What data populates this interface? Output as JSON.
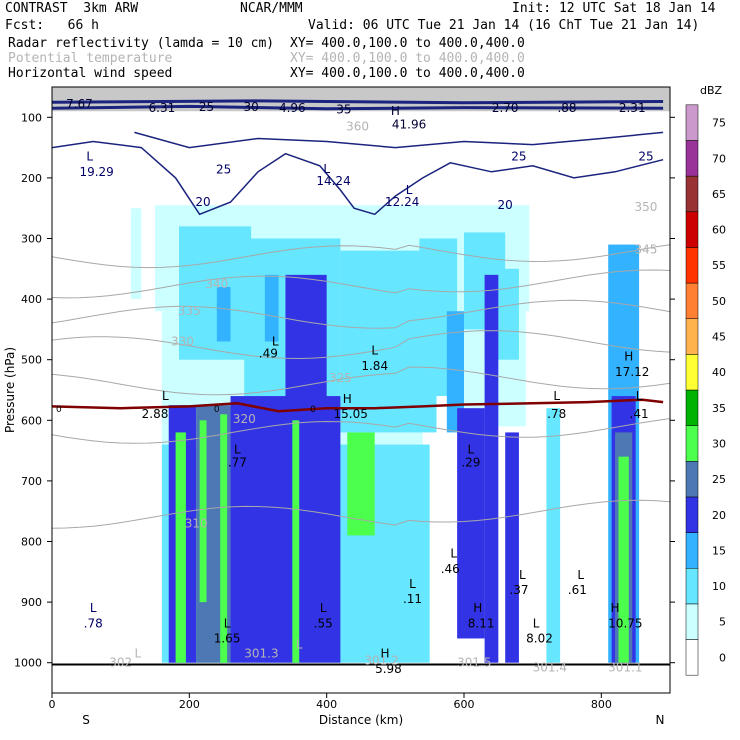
{
  "header": {
    "model": "CONTRAST  3km ARW",
    "org": "NCAR/MMM",
    "init": "Init: 12 UTC Sat 18 Jan 14",
    "fcst": "Fcst:   66 h",
    "valid": "Valid: 06 UTC Tue 21 Jan 14 (16 ChT Tue 21 Jan 14)",
    "fields": [
      {
        "name": "Radar reflectivity (lamda = 10 cm)",
        "xy": "XY= 400.0,100.0 to 400.0,400.0",
        "color": "#000000"
      },
      {
        "name": "Potential temperature",
        "xy": "XY= 400.0,100.0 to 400.0,400.0",
        "color": "#b4b4b4"
      },
      {
        "name": "Horizontal wind speed",
        "xy": "XY= 400.0,100.0 to 400.0,400.0",
        "color": "#000000"
      }
    ]
  },
  "chart_data": {
    "type": "cross-section",
    "xlabel": "Distance (km)",
    "ylabel": "Pressure (hPa)",
    "xlim": [
      0,
      900
    ],
    "ylim": [
      1050,
      50
    ],
    "x_ticks": [
      0,
      200,
      400,
      600,
      800
    ],
    "y_ticks": [
      100,
      200,
      300,
      400,
      500,
      600,
      700,
      800,
      900,
      1000
    ],
    "x_end_labels": {
      "left": "S",
      "right": "N"
    },
    "colorbar": {
      "unit": "dBZ",
      "levels": [
        0,
        5,
        10,
        15,
        20,
        25,
        30,
        35,
        40,
        45,
        50,
        55,
        60,
        65,
        70,
        75
      ],
      "colors": [
        "#ffffff",
        "#ccffff",
        "#66e6ff",
        "#33b3ff",
        "#3333e6",
        "#4d78b3",
        "#4dff4d",
        "#00b300",
        "#ffff33",
        "#ffb34d",
        "#ff7f33",
        "#ff3300",
        "#cc0000",
        "#993333",
        "#993399",
        "#cc99cc"
      ]
    },
    "reflectivity_cells": [
      {
        "x": [
          115,
          130
        ],
        "p": [
          250,
          400
        ],
        "dbz": 5
      },
      {
        "x": [
          150,
          695
        ],
        "p": [
          245,
          420
        ],
        "dbz": 5
      },
      {
        "x": [
          590,
          690
        ],
        "p": [
          260,
          610
        ],
        "dbz": 5
      },
      {
        "x": [
          160,
          540
        ],
        "p": [
          420,
          640
        ],
        "dbz": 5
      },
      {
        "x": [
          160,
          550
        ],
        "p": [
          640,
          1000
        ],
        "dbz": 10
      },
      {
        "x": [
          185,
          290
        ],
        "p": [
          280,
          500
        ],
        "dbz": 10
      },
      {
        "x": [
          280,
          420
        ],
        "p": [
          300,
          560
        ],
        "dbz": 10
      },
      {
        "x": [
          420,
          560
        ],
        "p": [
          320,
          620
        ],
        "dbz": 10
      },
      {
        "x": [
          535,
          590
        ],
        "p": [
          300,
          560
        ],
        "dbz": 10
      },
      {
        "x": [
          600,
          660
        ],
        "p": [
          290,
          450
        ],
        "dbz": 10
      },
      {
        "x": [
          630,
          680
        ],
        "p": [
          350,
          500
        ],
        "dbz": 10
      },
      {
        "x": [
          240,
          260
        ],
        "p": [
          380,
          470
        ],
        "dbz": 15
      },
      {
        "x": [
          310,
          330
        ],
        "p": [
          360,
          470
        ],
        "dbz": 15
      },
      {
        "x": [
          340,
          400
        ],
        "p": [
          360,
          580
        ],
        "dbz": 20
      },
      {
        "x": [
          260,
          420
        ],
        "p": [
          560,
          1000
        ],
        "dbz": 20
      },
      {
        "x": [
          170,
          210
        ],
        "p": [
          575,
          1000
        ],
        "dbz": 20
      },
      {
        "x": [
          210,
          260
        ],
        "p": [
          575,
          1000
        ],
        "dbz": 25
      },
      {
        "x": [
          575,
          600
        ],
        "p": [
          420,
          620
        ],
        "dbz": 15
      },
      {
        "x": [
          630,
          650
        ],
        "p": [
          360,
          1000
        ],
        "dbz": 20
      },
      {
        "x": [
          810,
          855
        ],
        "p": [
          310,
          1000
        ],
        "dbz": 15
      },
      {
        "x": [
          815,
          850
        ],
        "p": [
          560,
          1000
        ],
        "dbz": 20
      },
      {
        "x": [
          820,
          845
        ],
        "p": [
          620,
          1000
        ],
        "dbz": 25
      },
      {
        "x": [
          825,
          840
        ],
        "p": [
          660,
          1000
        ],
        "dbz": 30
      },
      {
        "x": [
          180,
          195
        ],
        "p": [
          620,
          1000
        ],
        "dbz": 30
      },
      {
        "x": [
          215,
          225
        ],
        "p": [
          600,
          900
        ],
        "dbz": 30
      },
      {
        "x": [
          245,
          255
        ],
        "p": [
          590,
          1000
        ],
        "dbz": 30
      },
      {
        "x": [
          350,
          360
        ],
        "p": [
          600,
          1000
        ],
        "dbz": 30
      },
      {
        "x": [
          430,
          470
        ],
        "p": [
          620,
          790
        ],
        "dbz": 30
      },
      {
        "x": [
          590,
          630
        ],
        "p": [
          580,
          960
        ],
        "dbz": 20
      },
      {
        "x": [
          660,
          680
        ],
        "p": [
          620,
          1000
        ],
        "dbz": 20
      },
      {
        "x": [
          720,
          740
        ],
        "p": [
          580,
          1000
        ],
        "dbz": 10
      }
    ],
    "freezing_level_label": "0",
    "freezing_level": [
      {
        "x": 0,
        "p": 577
      },
      {
        "x": 100,
        "p": 580
      },
      {
        "x": 200,
        "p": 577
      },
      {
        "x": 270,
        "p": 572
      },
      {
        "x": 330,
        "p": 585
      },
      {
        "x": 400,
        "p": 580
      },
      {
        "x": 470,
        "p": 580
      },
      {
        "x": 540,
        "p": 577
      },
      {
        "x": 600,
        "p": 574
      },
      {
        "x": 700,
        "p": 572
      },
      {
        "x": 780,
        "p": 570
      },
      {
        "x": 860,
        "p": 566
      },
      {
        "x": 890,
        "p": 570
      }
    ],
    "wind_contours": [
      {
        "label": "20",
        "points": [
          {
            "x": 0,
            "p": 150
          },
          {
            "x": 60,
            "p": 140
          },
          {
            "x": 130,
            "p": 150
          },
          {
            "x": 180,
            "p": 200
          },
          {
            "x": 215,
            "p": 260
          },
          {
            "x": 260,
            "p": 240
          },
          {
            "x": 300,
            "p": 190
          },
          {
            "x": 340,
            "p": 160
          },
          {
            "x": 390,
            "p": 180
          },
          {
            "x": 420,
            "p": 220
          },
          {
            "x": 440,
            "p": 250
          },
          {
            "x": 470,
            "p": 260
          },
          {
            "x": 500,
            "p": 230
          },
          {
            "x": 540,
            "p": 200
          },
          {
            "x": 580,
            "p": 175
          },
          {
            "x": 640,
            "p": 190
          },
          {
            "x": 700,
            "p": 180
          },
          {
            "x": 760,
            "p": 200
          },
          {
            "x": 820,
            "p": 190
          },
          {
            "x": 890,
            "p": 170
          }
        ]
      },
      {
        "label": "25",
        "points": [
          {
            "x": 120,
            "p": 125
          },
          {
            "x": 200,
            "p": 150
          },
          {
            "x": 300,
            "p": 135
          },
          {
            "x": 400,
            "p": 140
          },
          {
            "x": 500,
            "p": 150
          },
          {
            "x": 600,
            "p": 140
          },
          {
            "x": 700,
            "p": 145
          },
          {
            "x": 800,
            "p": 135
          },
          {
            "x": 890,
            "p": 125
          }
        ]
      },
      {
        "label": "30",
        "points": [
          {
            "x": 0,
            "p": 85
          },
          {
            "x": 200,
            "p": 82
          },
          {
            "x": 400,
            "p": 86
          },
          {
            "x": 600,
            "p": 84
          },
          {
            "x": 890,
            "p": 85
          }
        ]
      },
      {
        "label": "35",
        "points": [
          {
            "x": 0,
            "p": 75
          },
          {
            "x": 300,
            "p": 73
          },
          {
            "x": 600,
            "p": 76
          },
          {
            "x": 890,
            "p": 74
          }
        ]
      }
    ],
    "theta_contours": [
      {
        "label": "345",
        "p": 330
      },
      {
        "label": "340",
        "p": 380
      },
      {
        "label": "335",
        "p": 430
      },
      {
        "label": "330",
        "p": 480
      },
      {
        "label": "325",
        "p": 540
      },
      {
        "label": "320",
        "p": 620
      },
      {
        "label": "310",
        "p": 760
      }
    ],
    "annotations": [
      {
        "text": "7.67",
        "x": 40,
        "p": 78,
        "color": "#000033"
      },
      {
        "text": "6.31",
        "x": 160,
        "p": 85,
        "color": "#000033"
      },
      {
        "text": "25",
        "x": 225,
        "p": 83,
        "color": "#000033"
      },
      {
        "text": "30",
        "x": 290,
        "p": 83,
        "color": "#000033"
      },
      {
        "text": "4.96",
        "x": 350,
        "p": 85,
        "color": "#000033"
      },
      {
        "text": "35",
        "x": 425,
        "p": 87,
        "color": "#000033"
      },
      {
        "text": "H",
        "x": 500,
        "p": 90,
        "color": "#000033"
      },
      {
        "text": "41.96",
        "x": 520,
        "p": 112,
        "color": "#000033"
      },
      {
        "text": "2.70",
        "x": 660,
        "p": 85,
        "color": "#000033"
      },
      {
        "text": ".88",
        "x": 750,
        "p": 85,
        "color": "#000033"
      },
      {
        "text": "2.31",
        "x": 845,
        "p": 85,
        "color": "#000033"
      },
      {
        "text": "L",
        "x": 55,
        "p": 165,
        "color": "#000066"
      },
      {
        "text": "19.29",
        "x": 65,
        "p": 190,
        "color": "#000066"
      },
      {
        "text": "25",
        "x": 250,
        "p": 186,
        "color": "#000066"
      },
      {
        "text": "20",
        "x": 220,
        "p": 240,
        "color": "#000066"
      },
      {
        "text": "L",
        "x": 400,
        "p": 185,
        "color": "#000066"
      },
      {
        "text": "14.24",
        "x": 410,
        "p": 205,
        "color": "#000066"
      },
      {
        "text": "L",
        "x": 520,
        "p": 220,
        "color": "#000066"
      },
      {
        "text": "12.24",
        "x": 510,
        "p": 240,
        "color": "#000066"
      },
      {
        "text": "25",
        "x": 680,
        "p": 165,
        "color": "#000066"
      },
      {
        "text": "20",
        "x": 660,
        "p": 245,
        "color": "#000066"
      },
      {
        "text": "25",
        "x": 865,
        "p": 165,
        "color": "#000066"
      },
      {
        "text": "350",
        "x": 865,
        "p": 248,
        "color": "#b4b4b4"
      },
      {
        "text": "360",
        "x": 445,
        "p": 115,
        "color": "#b4b4b4"
      },
      {
        "text": "345",
        "x": 865,
        "p": 318,
        "color": "#b4b4b4"
      },
      {
        "text": "340",
        "x": 240,
        "p": 375,
        "color": "#b4b4b4"
      },
      {
        "text": "335",
        "x": 200,
        "p": 420,
        "color": "#b4b4b4"
      },
      {
        "text": "330",
        "x": 190,
        "p": 470,
        "color": "#b4b4b4"
      },
      {
        "text": "325",
        "x": 420,
        "p": 530,
        "color": "#b4b4b4"
      },
      {
        "text": "320",
        "x": 280,
        "p": 598,
        "color": "#b4b4b4"
      },
      {
        "text": "310",
        "x": 210,
        "p": 770,
        "color": "#b4b4b4"
      },
      {
        "text": "302",
        "x": 100,
        "p": 1000,
        "color": "#b4b4b4"
      },
      {
        "text": "301.3",
        "x": 305,
        "p": 985,
        "color": "#b4b4b4"
      },
      {
        "text": "301.2",
        "x": 480,
        "p": 996,
        "color": "#b4b4b4"
      },
      {
        "text": "301.5",
        "x": 615,
        "p": 1000,
        "color": "#b4b4b4"
      },
      {
        "text": "301.4",
        "x": 725,
        "p": 1008,
        "color": "#b4b4b4"
      },
      {
        "text": "301.1",
        "x": 835,
        "p": 1008,
        "color": "#b4b4b4"
      },
      {
        "text": "L",
        "x": 325,
        "p": 470,
        "color": "#000000"
      },
      {
        "text": ".49",
        "x": 315,
        "p": 490,
        "color": "#000000"
      },
      {
        "text": "L",
        "x": 470,
        "p": 485,
        "color": "#000000"
      },
      {
        "text": "1.84",
        "x": 470,
        "p": 510,
        "color": "#000000"
      },
      {
        "text": "H",
        "x": 840,
        "p": 495,
        "color": "#000000"
      },
      {
        "text": "17.12",
        "x": 845,
        "p": 520,
        "color": "#000000"
      },
      {
        "text": "L",
        "x": 165,
        "p": 560,
        "color": "#000000"
      },
      {
        "text": "2.88",
        "x": 150,
        "p": 590,
        "color": "#000000"
      },
      {
        "text": "H",
        "x": 430,
        "p": 565,
        "color": "#000000"
      },
      {
        "text": "15.05",
        "x": 435,
        "p": 590,
        "color": "#000000"
      },
      {
        "text": "L",
        "x": 735,
        "p": 560,
        "color": "#000000"
      },
      {
        "text": ".78",
        "x": 735,
        "p": 590,
        "color": "#000000"
      },
      {
        "text": "L",
        "x": 855,
        "p": 560,
        "color": "#000000"
      },
      {
        "text": ".41",
        "x": 855,
        "p": 590,
        "color": "#000000"
      },
      {
        "text": "L",
        "x": 270,
        "p": 648,
        "color": "#000000"
      },
      {
        "text": ".77",
        "x": 270,
        "p": 670,
        "color": "#000000"
      },
      {
        "text": "L",
        "x": 610,
        "p": 648,
        "color": "#000000"
      },
      {
        "text": ".29",
        "x": 610,
        "p": 670,
        "color": "#000000"
      },
      {
        "text": "L",
        "x": 585,
        "p": 820,
        "color": "#000000"
      },
      {
        "text": ".46",
        "x": 580,
        "p": 845,
        "color": "#000000"
      },
      {
        "text": "L",
        "x": 685,
        "p": 855,
        "color": "#000000"
      },
      {
        "text": ".37",
        "x": 680,
        "p": 880,
        "color": "#000000"
      },
      {
        "text": "L",
        "x": 770,
        "p": 855,
        "color": "#000000"
      },
      {
        "text": ".61",
        "x": 765,
        "p": 880,
        "color": "#000000"
      },
      {
        "text": "L",
        "x": 525,
        "p": 870,
        "color": "#000000"
      },
      {
        "text": ".11",
        "x": 525,
        "p": 895,
        "color": "#000000"
      },
      {
        "text": "L",
        "x": 60,
        "p": 910,
        "color": "#000066"
      },
      {
        "text": ".78",
        "x": 60,
        "p": 935,
        "color": "#000066"
      },
      {
        "text": "L",
        "x": 255,
        "p": 935,
        "color": "#000000"
      },
      {
        "text": "1.65",
        "x": 255,
        "p": 960,
        "color": "#000000"
      },
      {
        "text": "L",
        "x": 395,
        "p": 910,
        "color": "#000000"
      },
      {
        "text": ".55",
        "x": 395,
        "p": 935,
        "color": "#000000"
      },
      {
        "text": "H",
        "x": 620,
        "p": 910,
        "color": "#000000"
      },
      {
        "text": "8.11",
        "x": 625,
        "p": 935,
        "color": "#000000"
      },
      {
        "text": "L",
        "x": 705,
        "p": 935,
        "color": "#000000"
      },
      {
        "text": "8.02",
        "x": 710,
        "p": 960,
        "color": "#000000"
      },
      {
        "text": "H",
        "x": 820,
        "p": 910,
        "color": "#000000"
      },
      {
        "text": "10.75",
        "x": 835,
        "p": 935,
        "color": "#000000"
      },
      {
        "text": "H",
        "x": 485,
        "p": 985,
        "color": "#000000"
      },
      {
        "text": "5.98",
        "x": 490,
        "p": 1010,
        "color": "#000000"
      },
      {
        "text": "L",
        "x": 125,
        "p": 985,
        "color": "#b4b4b4"
      },
      {
        "text": "L",
        "x": 360,
        "p": 970,
        "color": "#b4b4b4"
      }
    ]
  }
}
